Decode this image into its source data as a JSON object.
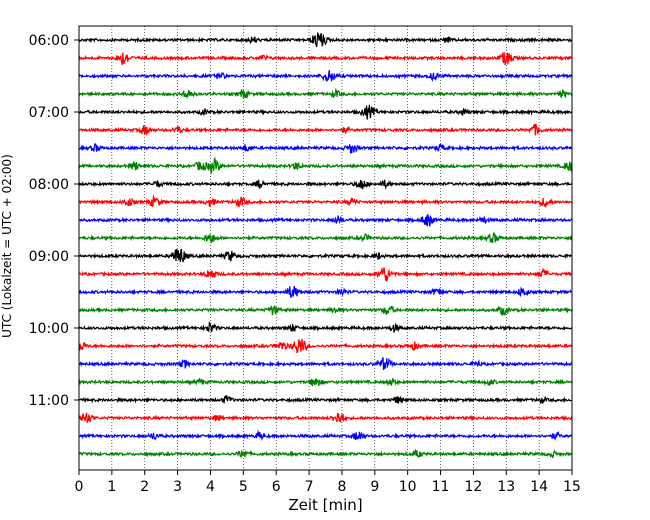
{
  "chart_data": {
    "type": "line",
    "xlabel": "Zeit  [min]",
    "ylabel": "UTC (Lokalzeit = UTC + 02:00)",
    "xlim": [
      0,
      15
    ],
    "x_ticks": [
      0,
      1,
      2,
      3,
      4,
      5,
      6,
      7,
      8,
      9,
      10,
      11,
      12,
      13,
      14,
      15
    ],
    "x_grid": true,
    "y_ticks": [
      "06:00",
      "07:00",
      "08:00",
      "09:00",
      "10:00",
      "11:00"
    ],
    "trace_interval_min": 15,
    "start_time": "06:00",
    "colors": [
      "#000000",
      "#ff0000",
      "#0000ff",
      "#008000"
    ],
    "traces": [
      {
        "time": "06:00",
        "color": "#000000",
        "events": [
          {
            "t": 5.3,
            "a": 0.35
          },
          {
            "t": 7.3,
            "a": 1.0
          },
          {
            "t": 11.2,
            "a": 0.3
          }
        ]
      },
      {
        "time": "06:15",
        "color": "#ff0000",
        "events": [
          {
            "t": 1.35,
            "a": 0.8
          },
          {
            "t": 5.6,
            "a": 0.3
          },
          {
            "t": 13.0,
            "a": 0.8
          }
        ]
      },
      {
        "time": "06:30",
        "color": "#0000ff",
        "events": [
          {
            "t": 4.3,
            "a": 0.4
          },
          {
            "t": 7.6,
            "a": 0.75
          },
          {
            "t": 10.8,
            "a": 0.45
          }
        ]
      },
      {
        "time": "06:45",
        "color": "#008000",
        "events": [
          {
            "t": 3.3,
            "a": 0.55
          },
          {
            "t": 5.0,
            "a": 0.5
          },
          {
            "t": 7.8,
            "a": 0.4
          },
          {
            "t": 14.7,
            "a": 0.4
          }
        ]
      },
      {
        "time": "07:00",
        "color": "#000000",
        "events": [
          {
            "t": 3.8,
            "a": 0.3
          },
          {
            "t": 8.8,
            "a": 0.8
          },
          {
            "t": 11.7,
            "a": 0.35
          }
        ]
      },
      {
        "time": "07:15",
        "color": "#ff0000",
        "events": [
          {
            "t": 2.0,
            "a": 0.5
          },
          {
            "t": 3.0,
            "a": 0.4
          },
          {
            "t": 8.1,
            "a": 0.3
          },
          {
            "t": 13.9,
            "a": 0.6
          }
        ]
      },
      {
        "time": "07:30",
        "color": "#0000ff",
        "events": [
          {
            "t": 0.5,
            "a": 0.4
          },
          {
            "t": 5.1,
            "a": 0.4
          },
          {
            "t": 8.3,
            "a": 0.6
          },
          {
            "t": 11.0,
            "a": 0.4
          }
        ]
      },
      {
        "time": "07:45",
        "color": "#008000",
        "events": [
          {
            "t": 1.7,
            "a": 0.5
          },
          {
            "t": 3.7,
            "a": 0.55
          },
          {
            "t": 4.1,
            "a": 0.8
          },
          {
            "t": 6.6,
            "a": 0.4
          },
          {
            "t": 14.9,
            "a": 0.55
          }
        ]
      },
      {
        "time": "08:00",
        "color": "#000000",
        "events": [
          {
            "t": 2.4,
            "a": 0.35
          },
          {
            "t": 5.5,
            "a": 0.45
          },
          {
            "t": 8.6,
            "a": 0.6
          },
          {
            "t": 9.3,
            "a": 0.4
          }
        ]
      },
      {
        "time": "08:15",
        "color": "#ff0000",
        "events": [
          {
            "t": 1.5,
            "a": 0.45
          },
          {
            "t": 2.3,
            "a": 0.6
          },
          {
            "t": 4.0,
            "a": 0.45
          },
          {
            "t": 4.9,
            "a": 0.55
          },
          {
            "t": 8.3,
            "a": 0.4
          },
          {
            "t": 14.2,
            "a": 0.6
          }
        ]
      },
      {
        "time": "08:30",
        "color": "#0000ff",
        "events": [
          {
            "t": 7.9,
            "a": 0.4
          },
          {
            "t": 10.6,
            "a": 0.75
          },
          {
            "t": 12.3,
            "a": 0.35
          }
        ]
      },
      {
        "time": "08:45",
        "color": "#008000",
        "events": [
          {
            "t": 4.0,
            "a": 0.55
          },
          {
            "t": 8.7,
            "a": 0.35
          },
          {
            "t": 12.6,
            "a": 0.55
          }
        ]
      },
      {
        "time": "09:00",
        "color": "#000000",
        "events": [
          {
            "t": 3.05,
            "a": 1.0
          },
          {
            "t": 4.6,
            "a": 0.6
          },
          {
            "t": 9.1,
            "a": 0.35
          }
        ]
      },
      {
        "time": "09:15",
        "color": "#ff0000",
        "events": [
          {
            "t": 4.0,
            "a": 0.6
          },
          {
            "t": 9.3,
            "a": 0.9
          },
          {
            "t": 14.1,
            "a": 0.5
          }
        ]
      },
      {
        "time": "09:30",
        "color": "#0000ff",
        "events": [
          {
            "t": 6.5,
            "a": 0.75
          },
          {
            "t": 8.0,
            "a": 0.4
          },
          {
            "t": 10.9,
            "a": 0.4
          },
          {
            "t": 13.5,
            "a": 0.55
          }
        ]
      },
      {
        "time": "09:45",
        "color": "#008000",
        "events": [
          {
            "t": 5.9,
            "a": 0.55
          },
          {
            "t": 7.8,
            "a": 0.35
          },
          {
            "t": 9.4,
            "a": 0.55
          },
          {
            "t": 12.9,
            "a": 0.55
          }
        ]
      },
      {
        "time": "10:00",
        "color": "#000000",
        "events": [
          {
            "t": 4.0,
            "a": 0.6
          },
          {
            "t": 6.5,
            "a": 0.4
          },
          {
            "t": 9.6,
            "a": 0.45
          }
        ]
      },
      {
        "time": "10:15",
        "color": "#ff0000",
        "events": [
          {
            "t": 0.05,
            "a": 0.6
          },
          {
            "t": 6.15,
            "a": 0.5
          },
          {
            "t": 6.7,
            "a": 1.0
          },
          {
            "t": 10.2,
            "a": 0.4
          }
        ]
      },
      {
        "time": "10:30",
        "color": "#0000ff",
        "events": [
          {
            "t": 3.2,
            "a": 0.45
          },
          {
            "t": 9.3,
            "a": 0.75
          },
          {
            "t": 12.1,
            "a": 0.35
          }
        ]
      },
      {
        "time": "10:45",
        "color": "#008000",
        "events": [
          {
            "t": 3.7,
            "a": 0.3
          },
          {
            "t": 7.2,
            "a": 0.6
          },
          {
            "t": 9.5,
            "a": 0.4
          },
          {
            "t": 12.5,
            "a": 0.35
          }
        ]
      },
      {
        "time": "11:00",
        "color": "#000000",
        "events": [
          {
            "t": 4.5,
            "a": 0.45
          },
          {
            "t": 9.7,
            "a": 0.4
          },
          {
            "t": 14.1,
            "a": 0.3
          }
        ]
      },
      {
        "time": "11:15",
        "color": "#ff0000",
        "events": [
          {
            "t": 0.2,
            "a": 0.75
          },
          {
            "t": 4.2,
            "a": 0.3
          },
          {
            "t": 7.9,
            "a": 0.75
          }
        ]
      },
      {
        "time": "11:30",
        "color": "#0000ff",
        "events": [
          {
            "t": 2.3,
            "a": 0.4
          },
          {
            "t": 5.5,
            "a": 0.4
          },
          {
            "t": 8.5,
            "a": 0.6
          },
          {
            "t": 14.5,
            "a": 0.35
          }
        ]
      },
      {
        "time": "11:45",
        "color": "#008000",
        "events": [
          {
            "t": 5.0,
            "a": 0.5
          },
          {
            "t": 10.3,
            "a": 0.4
          },
          {
            "t": 14.4,
            "a": 0.35
          }
        ]
      }
    ]
  }
}
